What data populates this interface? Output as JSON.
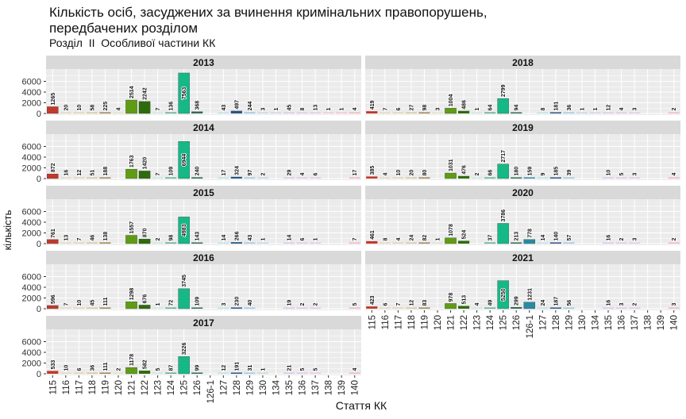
{
  "chart_data": {
    "type": "bar",
    "title_line1": "Кількість осіб, засуджених за вчинення кримінальних правопорушень,",
    "title_line2": "передбачених розділом",
    "subtitle": "Розділ  ІІ  Особливої частини КК",
    "xlabel": "Стаття КК",
    "ylabel": "кількість",
    "ylim": [
      0,
      8000
    ],
    "yticks": [
      0,
      2000,
      4000,
      6000
    ],
    "categories": [
      "115",
      "116",
      "117",
      "118",
      "119",
      "120",
      "121",
      "122",
      "123",
      "124",
      "125",
      "126",
      "126-1",
      "127",
      "128",
      "129",
      "130",
      "134",
      "135",
      "136",
      "137",
      "138",
      "139",
      "140"
    ],
    "colors": [
      "#c0392b",
      "#e8d5c0",
      "#e3d2b5",
      "#d8c49f",
      "#a08256",
      "#dfe6c8",
      "#5f9c14",
      "#2e6b0c",
      "#cfe8dc",
      "#5eae8c",
      "#16b886",
      "#2f6b55",
      "#2a8aa0",
      "#bfe0ea",
      "#2a5585",
      "#9fc8de",
      "#c9d7e0",
      "#d9d2e6",
      "#d9c7ea",
      "#e0c6e6",
      "#e6c9e0",
      "#ecc9d8",
      "#efc6cf",
      "#f0b7c0"
    ],
    "panels": [
      {
        "year": "2013",
        "values": [
          1265,
          20,
          10,
          58,
          225,
          4,
          2514,
          2242,
          7,
          136,
          7563,
          368,
          null,
          43,
          497,
          244,
          3,
          1,
          45,
          8,
          13,
          1,
          1,
          4
        ]
      },
      {
        "year": "2014",
        "values": [
          872,
          16,
          12,
          51,
          188,
          null,
          1763,
          1420,
          7,
          109,
          6944,
          240,
          null,
          17,
          324,
          97,
          2,
          null,
          29,
          4,
          6,
          null,
          null,
          17
        ]
      },
      {
        "year": "2015",
        "values": [
          761,
          13,
          7,
          46,
          138,
          null,
          1557,
          870,
          2,
          98,
          4983,
          143,
          null,
          14,
          266,
          43,
          1,
          null,
          14,
          6,
          1,
          null,
          null,
          7
        ]
      },
      {
        "year": "2016",
        "values": [
          596,
          7,
          10,
          45,
          111,
          null,
          1298,
          676,
          1,
          72,
          3745,
          109,
          null,
          3,
          230,
          40,
          null,
          null,
          19,
          2,
          2,
          null,
          null,
          5
        ]
      },
      {
        "year": "2017",
        "values": [
          533,
          10,
          6,
          36,
          111,
          2,
          1178,
          582,
          5,
          87,
          3226,
          99,
          null,
          12,
          191,
          31,
          1,
          null,
          21,
          5,
          5,
          null,
          null,
          4
        ]
      },
      {
        "year": "2018",
        "values": [
          419,
          7,
          6,
          27,
          98,
          3,
          1004,
          486,
          1,
          64,
          2799,
          94,
          null,
          8,
          181,
          36,
          1,
          1,
          12,
          4,
          3,
          null,
          null,
          2
        ]
      },
      {
        "year": "2019",
        "values": [
          385,
          4,
          10,
          20,
          80,
          null,
          1031,
          476,
          2,
          66,
          2717,
          180,
          159,
          9,
          185,
          39,
          null,
          null,
          10,
          5,
          3,
          null,
          null,
          4
        ]
      },
      {
        "year": "2020",
        "values": [
          461,
          8,
          4,
          24,
          82,
          1,
          1078,
          524,
          null,
          37,
          3786,
          213,
          778,
          14,
          140,
          57,
          null,
          null,
          16,
          2,
          3,
          null,
          null,
          2
        ]
      },
      {
        "year": "2021",
        "values": [
          423,
          6,
          7,
          12,
          83,
          null,
          978,
          513,
          4,
          49,
          5250,
          299,
          1231,
          24,
          187,
          56,
          null,
          null,
          16,
          3,
          2,
          null,
          null,
          3
        ]
      }
    ]
  }
}
